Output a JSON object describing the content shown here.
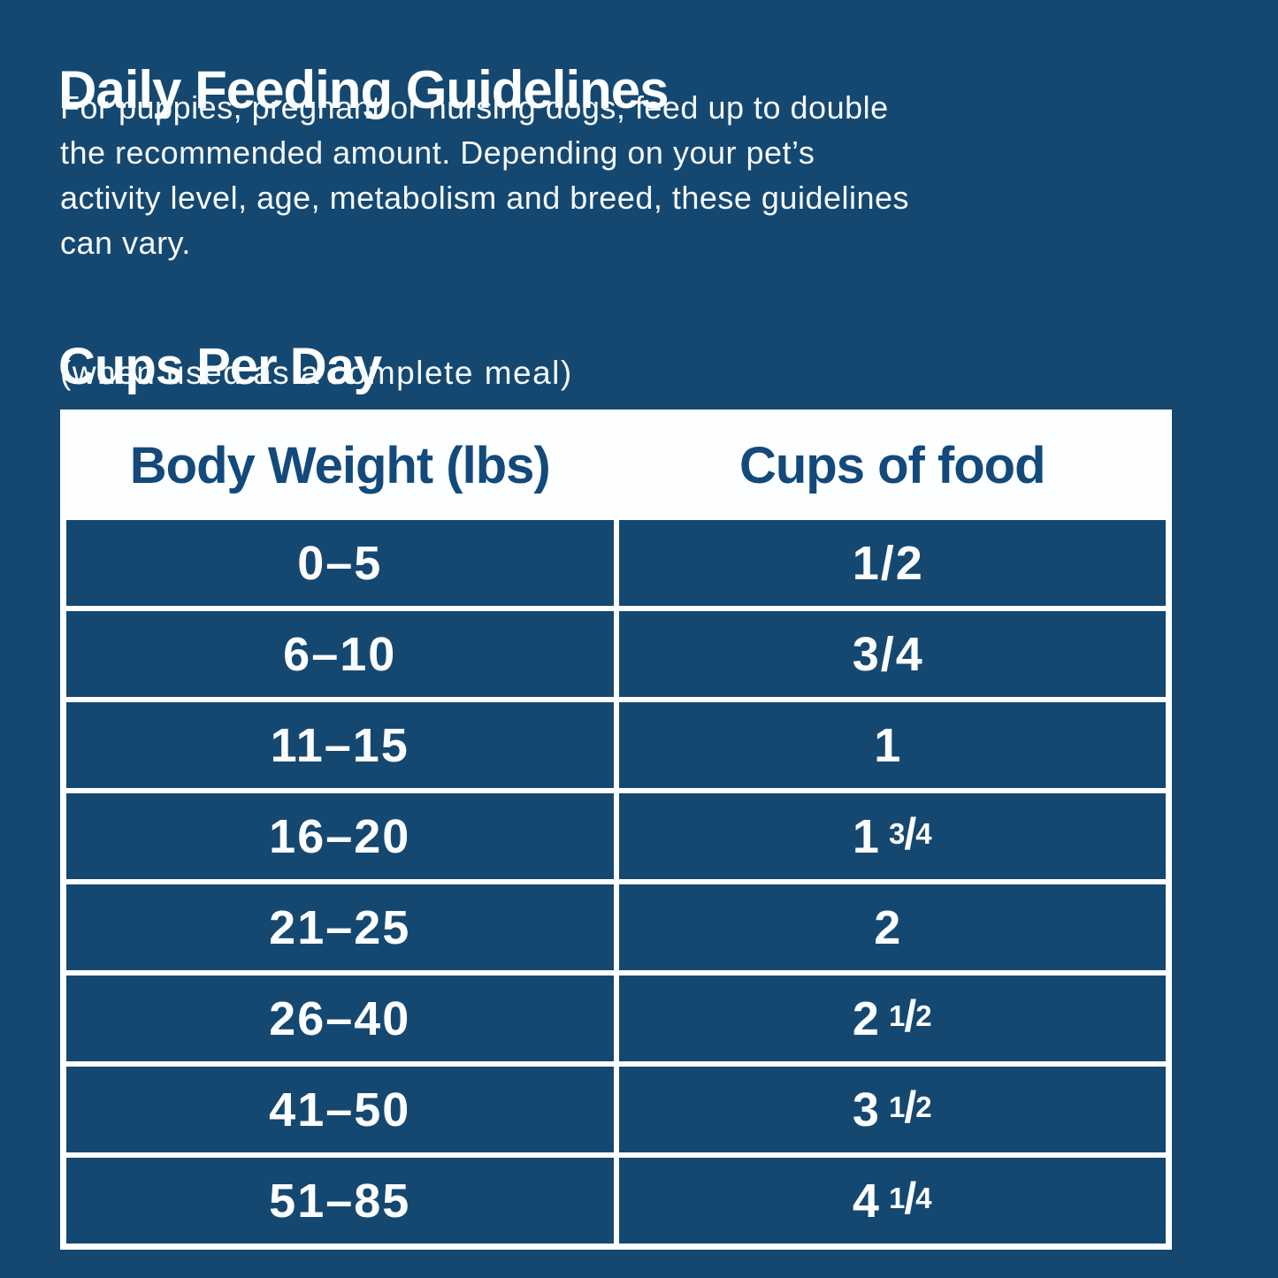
{
  "colors": {
    "background_navy": "#154870",
    "table_white": "#FCFEFF",
    "header_text_blue": "#13497B",
    "cell_text_white": "#FCFDFE"
  },
  "header": {
    "title": "Daily Feeding Guidelines"
  },
  "intro": {
    "lines": [
      "For puppies, pregnant or nursing dogs, feed up to double",
      "the recommended amount. Depending on your pet’s",
      "activity level, age, metabolism and breed, these guidelines",
      "can vary."
    ]
  },
  "section": {
    "title": "Cups Per Day",
    "subtitle": "(when used as a complete meal)"
  },
  "table": {
    "columns": [
      "Body Weight (lbs)",
      "Cups of food"
    ],
    "rows": [
      {
        "weight": "0–5",
        "cups": "1/2",
        "main": "1/2",
        "frac_num": "",
        "frac_slash": "",
        "frac_den": ""
      },
      {
        "weight": "6–10",
        "cups": "3/4",
        "main": "3/4",
        "frac_num": "",
        "frac_slash": "",
        "frac_den": ""
      },
      {
        "weight": "11–15",
        "cups": "1",
        "main": "1",
        "frac_num": "",
        "frac_slash": "",
        "frac_den": ""
      },
      {
        "weight": "16–20",
        "cups": "1 3/4",
        "main": "1",
        "frac_num": "3",
        "frac_slash": "/",
        "frac_den": "4"
      },
      {
        "weight": "21–25",
        "cups": "2",
        "main": "2",
        "frac_num": "",
        "frac_slash": "",
        "frac_den": ""
      },
      {
        "weight": "26–40",
        "cups": "2 1/2",
        "main": "2",
        "frac_num": "1",
        "frac_slash": "/",
        "frac_den": "2"
      },
      {
        "weight": "41–50",
        "cups": "3 1/2",
        "main": "3",
        "frac_num": "1",
        "frac_slash": "/",
        "frac_den": "2"
      },
      {
        "weight": "51–85",
        "cups": "4 1/4",
        "main": "4",
        "frac_num": "1",
        "frac_slash": "/",
        "frac_den": "4"
      }
    ]
  }
}
